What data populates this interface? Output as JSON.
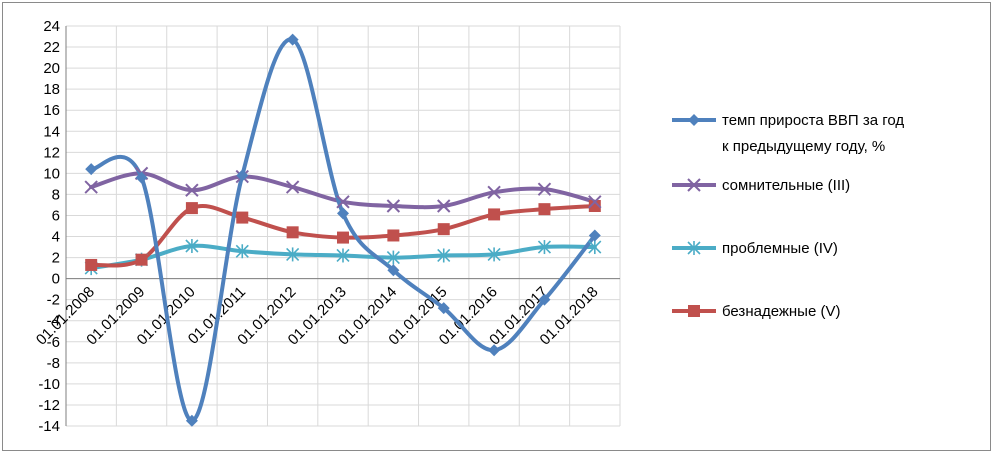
{
  "chart_data": {
    "type": "line",
    "categories": [
      "01.01.2008",
      "01.01.2009",
      "01.01.2010",
      "01.01.2011",
      "01.01.2012",
      "01.01.2013",
      "01.01.2014",
      "01.01.2015",
      "01.01.2016",
      "01.01.2017",
      "01.01.2018"
    ],
    "ylim": [
      -14,
      24
    ],
    "ytick_step": 2,
    "grid": true,
    "legend_position": "right",
    "series": [
      {
        "name": "темп прироста ВВП за год к предыдущему году, %",
        "color": "#4f81bd",
        "marker": "diamond",
        "values": [
          10.4,
          9.6,
          -13.5,
          9.8,
          22.7,
          6.2,
          0.8,
          -2.8,
          -6.8,
          -2.0,
          4.1
        ]
      },
      {
        "name": "сомнительные (III)",
        "color": "#8064a2",
        "marker": "x",
        "values": [
          8.7,
          10.0,
          8.4,
          9.7,
          8.7,
          7.3,
          6.9,
          6.9,
          8.2,
          8.5,
          7.3
        ]
      },
      {
        "name": "проблемные (IV)",
        "color": "#4bacc6",
        "marker": "star",
        "values": [
          1.0,
          1.8,
          3.1,
          2.6,
          2.3,
          2.2,
          2.0,
          2.2,
          2.3,
          3.0,
          3.0
        ]
      },
      {
        "name": "безнадежные (V)",
        "color": "#c0504d",
        "marker": "square",
        "values": [
          1.3,
          1.8,
          6.7,
          5.8,
          4.4,
          3.9,
          4.1,
          4.7,
          6.1,
          6.6,
          6.9
        ]
      }
    ]
  }
}
